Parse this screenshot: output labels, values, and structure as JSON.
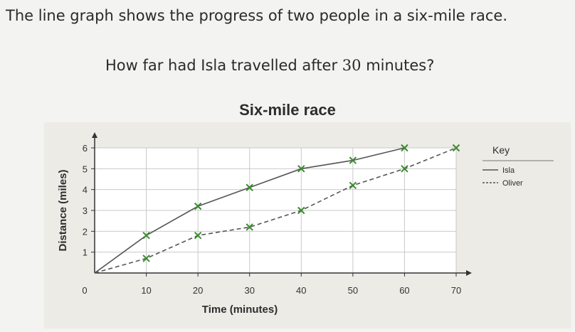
{
  "question": {
    "line1": "The line graph shows the progress of two people in a six-mile race.",
    "line2_prefix": "How far had Isla travelled after ",
    "line2_number": "30",
    "line2_suffix": " minutes?"
  },
  "chart_data": {
    "type": "line",
    "title": "Six-mile race",
    "xlabel": "Time (minutes)",
    "ylabel": "Distance (miles)",
    "xlim": [
      0,
      70
    ],
    "ylim": [
      0,
      6
    ],
    "x_ticks": [
      "0",
      "10",
      "20",
      "30",
      "40",
      "50",
      "60",
      "70"
    ],
    "y_ticks": [
      "1",
      "2",
      "3",
      "4",
      "5",
      "6"
    ],
    "grid": true,
    "legend_title": "Key",
    "legend_position": "right",
    "series": [
      {
        "name": "Isla",
        "style": "solid",
        "color": "#555555",
        "marker_color": "#3a8a2e",
        "x": [
          0,
          10,
          20,
          30,
          40,
          50,
          60
        ],
        "y": [
          0,
          1.8,
          3.2,
          4.1,
          5,
          5.4,
          6
        ]
      },
      {
        "name": "Oliver",
        "style": "dashed",
        "color": "#555555",
        "marker_color": "#3a8a2e",
        "x": [
          0,
          10,
          20,
          30,
          40,
          50,
          60,
          70
        ],
        "y": [
          0,
          0.7,
          1.8,
          2.2,
          3,
          4.2,
          5,
          6
        ]
      }
    ]
  }
}
